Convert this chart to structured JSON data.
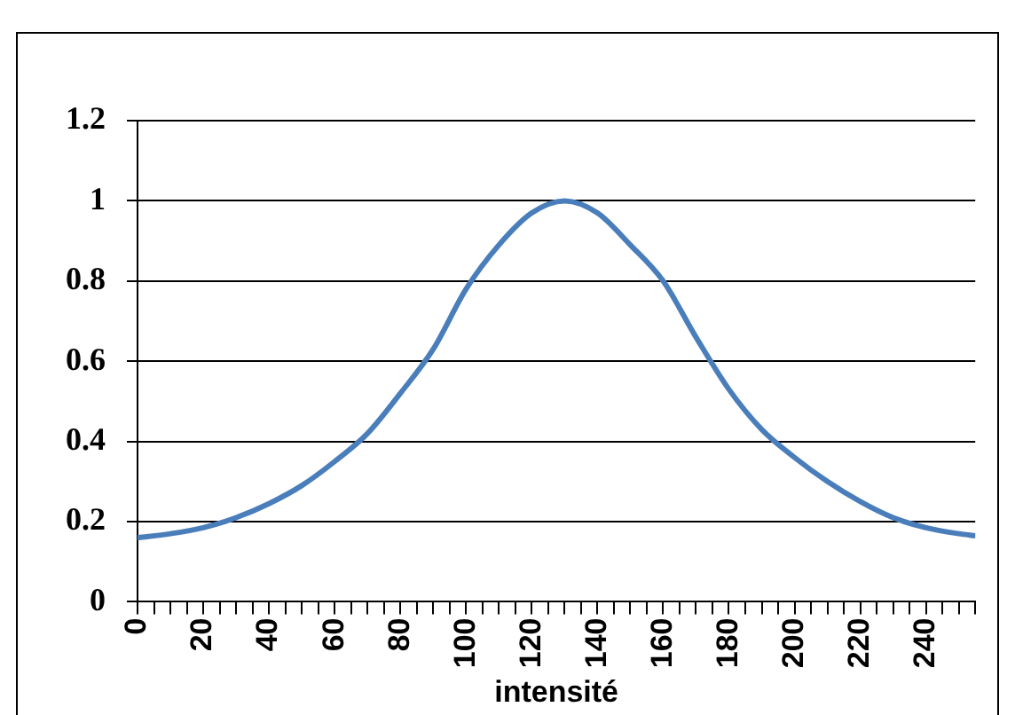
{
  "chart_data": {
    "type": "line",
    "xlabel": "intensité",
    "x": [
      0,
      10,
      20,
      30,
      40,
      50,
      60,
      70,
      80,
      90,
      100,
      110,
      120,
      130,
      140,
      150,
      160,
      170,
      180,
      190,
      200,
      210,
      220,
      230,
      240,
      250,
      255
    ],
    "series": [
      {
        "color": "#4a7ebb",
        "values": [
          0.16,
          0.17,
          0.185,
          0.21,
          0.245,
          0.29,
          0.35,
          0.42,
          0.52,
          0.63,
          0.78,
          0.89,
          0.97,
          1,
          0.97,
          0.89,
          0.8,
          0.66,
          0.53,
          0.43,
          0.36,
          0.3,
          0.25,
          0.21,
          0.185,
          0.17,
          0.165
        ]
      }
    ],
    "xlim": [
      0,
      255
    ],
    "xticks": [
      0,
      {
        "value": 5,
        "label": null
      },
      {
        "value": 10,
        "label": null
      },
      {
        "value": 15,
        "label": null
      },
      20,
      {
        "value": 25,
        "label": null
      },
      {
        "value": 30,
        "label": null
      },
      {
        "value": 35,
        "label": null
      },
      40,
      {
        "value": 45,
        "label": null
      },
      {
        "value": 50,
        "label": null
      },
      {
        "value": 55,
        "label": null
      },
      60,
      {
        "value": 65,
        "label": null
      },
      {
        "value": 70,
        "label": null
      },
      {
        "value": 75,
        "label": null
      },
      80,
      {
        "value": 85,
        "label": null
      },
      {
        "value": 90,
        "label": null
      },
      {
        "value": 95,
        "label": null
      },
      100,
      {
        "value": 105,
        "label": null
      },
      {
        "value": 110,
        "label": null
      },
      {
        "value": 115,
        "label": null
      },
      120,
      {
        "value": 125,
        "label": null
      },
      {
        "value": 130,
        "label": null
      },
      {
        "value": 135,
        "label": null
      },
      140,
      {
        "value": 145,
        "label": null
      },
      {
        "value": 150,
        "label": null
      },
      {
        "value": 155,
        "label": null
      },
      160,
      {
        "value": 165,
        "label": null
      },
      {
        "value": 170,
        "label": null
      },
      {
        "value": 175,
        "label": null
      },
      180,
      {
        "value": 185,
        "label": null
      },
      {
        "value": 190,
        "label": null
      },
      {
        "value": 195,
        "label": null
      },
      200,
      {
        "value": 205,
        "label": null
      },
      {
        "value": 210,
        "label": null
      },
      {
        "value": 215,
        "label": null
      },
      220,
      {
        "value": 225,
        "label": null
      },
      {
        "value": 230,
        "label": null
      },
      {
        "value": 235,
        "label": null
      },
      240,
      {
        "value": 245,
        "label": null
      },
      {
        "value": 250,
        "label": null
      },
      {
        "value": 255,
        "label": null
      }
    ],
    "ylim": [
      0,
      1.2
    ],
    "yticks": [
      0,
      0.2,
      0.4,
      0.6,
      0.8,
      1,
      1.2
    ],
    "grid": "y",
    "legend": false,
    "marker": "none",
    "line_style": "solid"
  }
}
